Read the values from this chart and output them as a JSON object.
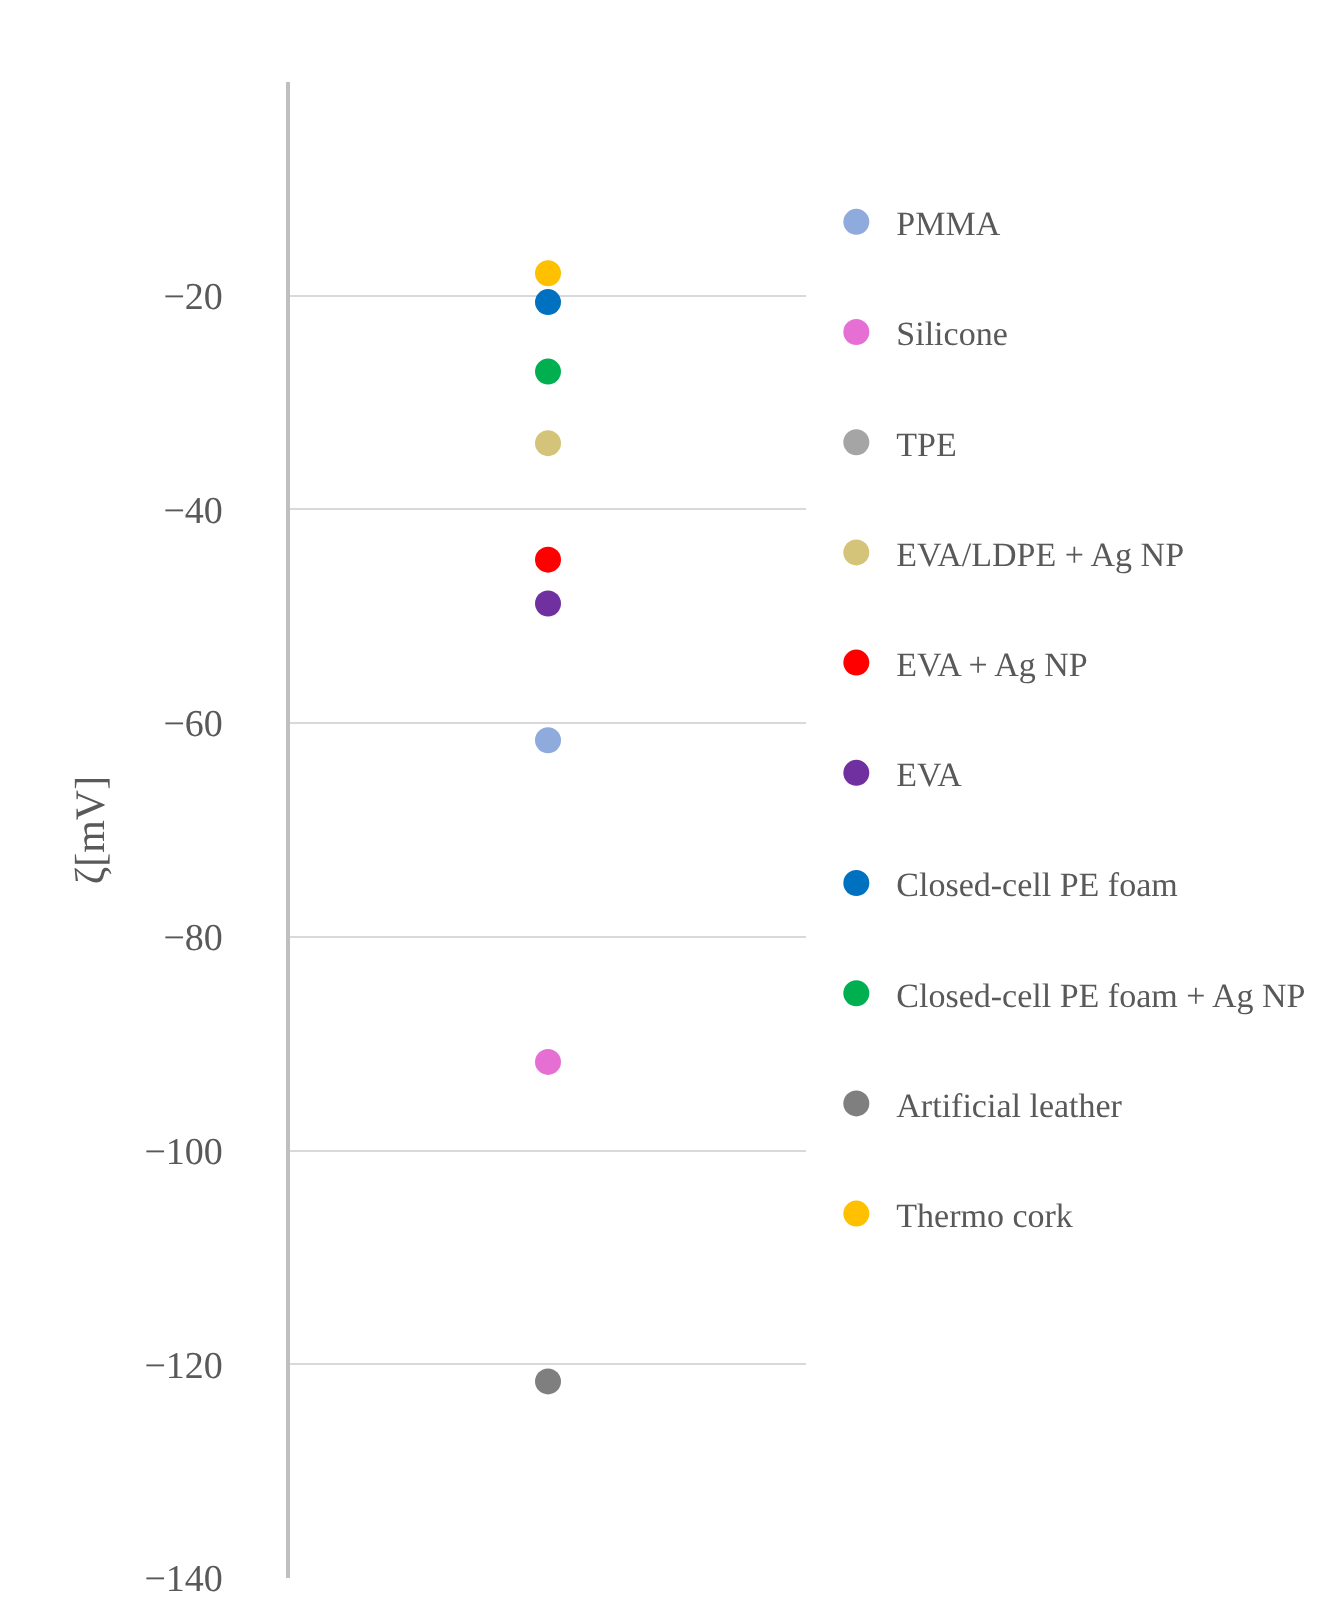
{
  "chart_data": {
    "type": "scatter",
    "ylabel": "ζ[mV]",
    "categories": [
      null
    ],
    "ylim": [
      -140,
      0
    ],
    "yticks": [
      {
        "value": -20,
        "label": "−20"
      },
      {
        "value": -40,
        "label": "−40"
      },
      {
        "value": -60,
        "label": "−60"
      },
      {
        "value": -80,
        "label": "−80"
      },
      {
        "value": -100,
        "label": "−100"
      },
      {
        "value": -120,
        "label": "−120"
      },
      {
        "value": -140,
        "label": "−140"
      }
    ],
    "grid": "y",
    "legend": "right",
    "marker": "circle",
    "series": [
      {
        "name": "PMMA",
        "color": "#8faadc",
        "values": [
          -61.6
        ]
      },
      {
        "name": "Silicone",
        "color": "#e66fd4",
        "values": [
          -91.7
        ]
      },
      {
        "name": "TPE",
        "color": "#a5a5a5",
        "values": [
          null
        ]
      },
      {
        "name": "EVA/LDPE + Ag NP",
        "color": "#d4c47a",
        "values": [
          -33.8
        ]
      },
      {
        "name": "EVA + Ag NP",
        "color": "#ff0000",
        "values": [
          -44.7
        ]
      },
      {
        "name": "EVA",
        "color": "#7030a0",
        "values": [
          -48.8
        ]
      },
      {
        "name": "Closed-cell PE foam",
        "color": "#0070c0",
        "values": [
          -20.6
        ]
      },
      {
        "name": "Closed-cell PE foam + Ag NP",
        "color": "#00b050",
        "values": [
          -27.1
        ]
      },
      {
        "name": "Artificial leather",
        "color": "#7f7f7f",
        "values": [
          -121.6
        ]
      },
      {
        "name": "Thermo cork",
        "color": "#ffc000",
        "values": [
          -17.9
        ]
      }
    ]
  }
}
